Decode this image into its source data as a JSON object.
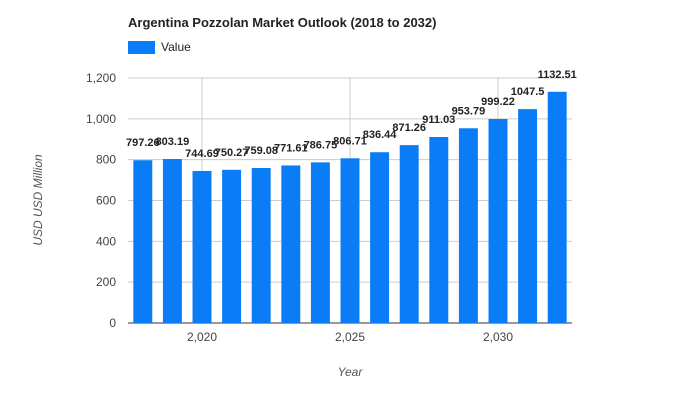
{
  "chart_data": {
    "type": "bar",
    "title": "Argentina Pozzolan Market Outlook (2018 to 2032)",
    "xlabel": "Year",
    "ylabel": "USD USD Million",
    "series_name": "Value",
    "color": "#0a7cf5",
    "x": [
      2018,
      2019,
      2020,
      2021,
      2022,
      2023,
      2024,
      2025,
      2026,
      2027,
      2028,
      2029,
      2030,
      2031,
      2032
    ],
    "values": [
      797.26,
      803.19,
      744.69,
      750.27,
      759.08,
      771.61,
      786.75,
      806.71,
      836.44,
      871.26,
      911.03,
      953.79,
      999.22,
      1047.5,
      1132.51
    ],
    "data_labels": [
      "797.26",
      "803.19",
      "744.69",
      "750.27",
      "759.08",
      "771.61",
      "786.75",
      "806.71",
      "836.44",
      "871.26",
      "911.03",
      "953.79",
      "999.22",
      "1047.5",
      "1132.51"
    ],
    "ylim": [
      0,
      1200
    ],
    "yticks": [
      0,
      200,
      400,
      600,
      800,
      1000,
      1200
    ],
    "ytick_labels": [
      "0",
      "200",
      "400",
      "600",
      "800",
      "1,000",
      "1,200"
    ],
    "xticks": [
      2020,
      2025,
      2030
    ],
    "xtick_labels": [
      "2,020",
      "2,025",
      "2,030"
    ],
    "legend": "top-left",
    "grid": true
  }
}
